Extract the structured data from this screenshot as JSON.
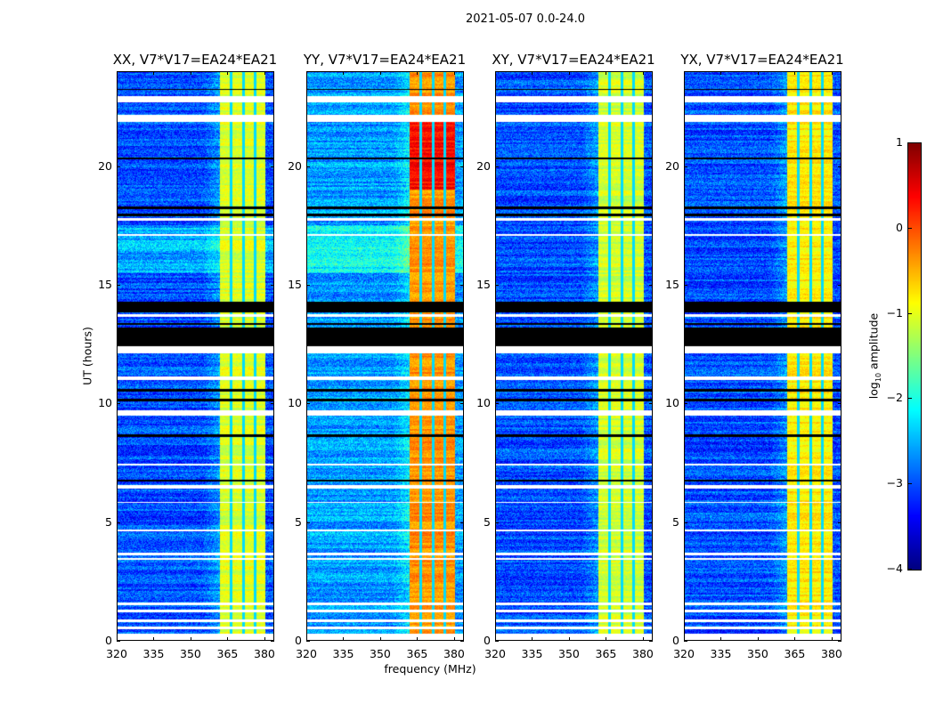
{
  "chart_data": {
    "type": "heatmap",
    "title": "2021-05-07 0.0-24.0",
    "xlabel": "frequency (MHz)",
    "ylabel": "UT (hours)",
    "xlim": [
      320,
      384
    ],
    "ylim": [
      0,
      24
    ],
    "xticks": [
      "320",
      "335",
      "350",
      "365",
      "380"
    ],
    "xtick_values": [
      320,
      335,
      350,
      365,
      380
    ],
    "yticks": [
      "0",
      "5",
      "10",
      "15",
      "20"
    ],
    "ytick_values": [
      0,
      5,
      10,
      15,
      20
    ],
    "colormap": "jet",
    "vmin": -4,
    "vmax": 1,
    "rfi_band_mhz": [
      362,
      380.5
    ],
    "band_channel_gaps_mhz": [
      366.5,
      371.5,
      376.3
    ],
    "flagged_white_hours": [
      [
        0,
        0.3
      ],
      [
        0.5,
        0.6
      ],
      [
        0.8,
        0.9
      ],
      [
        1.2,
        1.3
      ],
      [
        1.5,
        1.6
      ],
      [
        3.4,
        3.5
      ],
      [
        3.6,
        3.7
      ],
      [
        4.6,
        4.7
      ],
      [
        5.8,
        5.85
      ],
      [
        6.4,
        6.55
      ],
      [
        7.4,
        7.45
      ],
      [
        9.5,
        9.7
      ],
      [
        11.0,
        11.15
      ],
      [
        12.1,
        12.4
      ],
      [
        13.65,
        13.75
      ],
      [
        17.05,
        17.15
      ],
      [
        17.7,
        17.8
      ],
      [
        21.85,
        22.15
      ],
      [
        22.7,
        22.95
      ]
    ],
    "flagged_black_hours": [
      [
        6.7,
        6.8
      ],
      [
        8.6,
        8.7
      ],
      [
        10.1,
        10.2
      ],
      [
        10.5,
        10.6
      ],
      [
        12.4,
        13.2
      ],
      [
        13.3,
        13.4
      ],
      [
        13.85,
        14.3
      ],
      [
        17.9,
        18.0
      ],
      [
        18.2,
        18.3
      ],
      [
        20.3,
        20.35
      ],
      [
        23.2,
        23.25
      ]
    ],
    "panels": [
      {
        "title": "XX, V7*V17=EA24*EA21",
        "background_level": -3.0,
        "band_level": -1.05
      },
      {
        "title": "YY, V7*V17=EA24*EA21",
        "background_level": -2.6,
        "band_level": -0.35
      },
      {
        "title": "XY, V7*V17=EA24*EA21",
        "background_level": -3.0,
        "band_level": -1.1
      },
      {
        "title": "YX, V7*V17=EA24*EA21",
        "background_level": -3.0,
        "band_level": -0.8
      }
    ],
    "colorbar": {
      "label_prefix": "log",
      "label_sub": "10",
      "label_suffix": " amplitude",
      "ticks": [
        "1",
        "0",
        "−1",
        "−2",
        "−3",
        "−4"
      ],
      "tick_values": [
        1,
        0,
        -1,
        -2,
        -3,
        -4
      ]
    }
  }
}
